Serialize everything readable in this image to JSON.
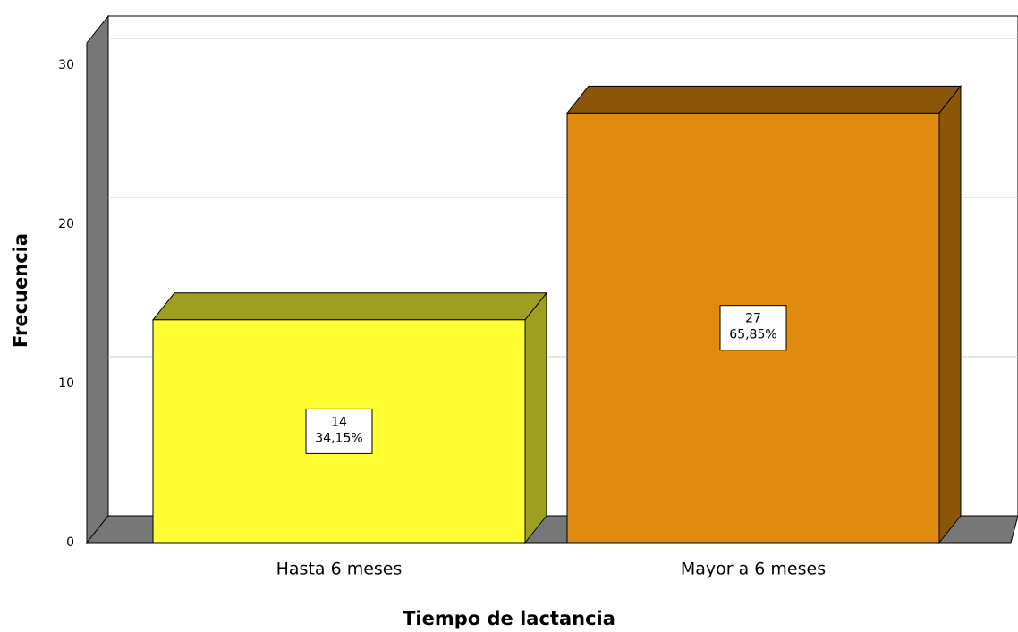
{
  "chart_data": {
    "type": "bar3d",
    "categories": [
      "Hasta 6 meses",
      "Mayor a 6 meses"
    ],
    "values": [
      14,
      27
    ],
    "percent_labels": [
      "34,15%",
      "65,85%"
    ],
    "colors": [
      "#ffff33",
      "#e08a10"
    ],
    "x_label": "Tiempo de lactancia",
    "y_label": "Frecuencia",
    "ylim": [
      0,
      33
    ],
    "yticks": [
      0,
      10,
      20,
      30
    ],
    "grid": true
  }
}
